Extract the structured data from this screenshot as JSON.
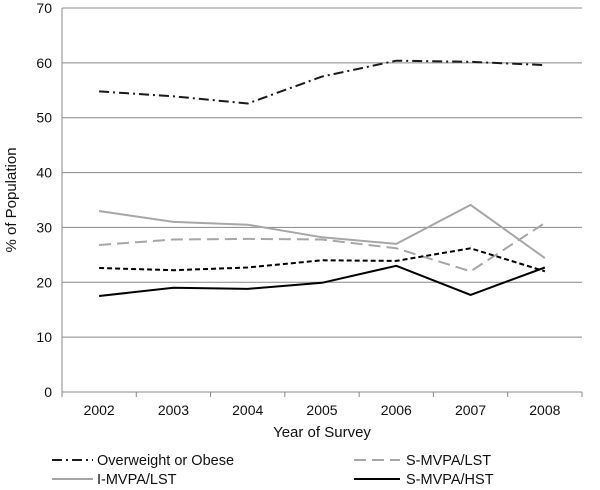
{
  "chart_data": {
    "type": "line",
    "title": "",
    "xlabel": "Year of Survey",
    "ylabel": "% of Population",
    "categories": [
      "2002",
      "2003",
      "2004",
      "2005",
      "2006",
      "2007",
      "2008"
    ],
    "ylim": [
      0,
      70
    ],
    "yticks": [
      "0",
      "10",
      "20",
      "30",
      "40",
      "50",
      "60",
      "70"
    ],
    "grid": "horizontal",
    "legend_position": "bottom",
    "series": [
      {
        "name": "Overweight or Obese",
        "values": [
          54.8,
          53.9,
          52.6,
          57.5,
          60.4,
          60.2,
          59.6
        ],
        "color": "#1a1a1a",
        "dash": "dash-dot"
      },
      {
        "name": "S-MVPA/LST",
        "values": [
          26.8,
          27.8,
          27.9,
          27.8,
          26.2,
          22.0,
          30.8
        ],
        "color": "#a6a6a6",
        "dash": "long-dash"
      },
      {
        "name": "I-MVPA/LST",
        "values": [
          33.0,
          31.0,
          30.5,
          28.2,
          27.0,
          34.1,
          24.4
        ],
        "color": "#a6a6a6",
        "dash": "solid"
      },
      {
        "name": "S-MVPA/HST",
        "values": [
          17.5,
          19.0,
          18.8,
          19.9,
          23.0,
          17.7,
          22.7
        ],
        "color": "#000000",
        "dash": "solid"
      },
      {
        "name": "",
        "values": [
          22.6,
          22.2,
          22.7,
          24.0,
          23.9,
          26.2,
          22.0
        ],
        "color": "#000000",
        "dash": "short-dash"
      }
    ],
    "legend": [
      "Overweight or Obese",
      "S-MVPA/LST",
      "I-MVPA/LST",
      "S-MVPA/HST"
    ]
  }
}
